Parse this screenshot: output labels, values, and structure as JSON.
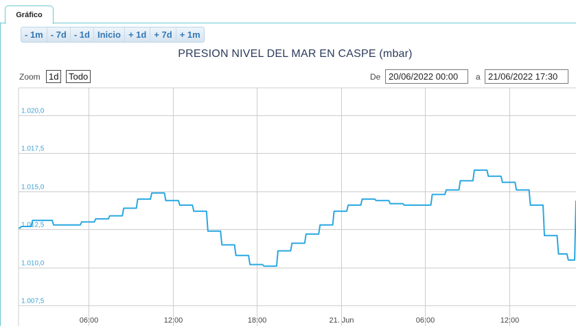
{
  "tab": {
    "label": "Gráfico"
  },
  "range_buttons": [
    "- 1m",
    "- 7d",
    "- 1d",
    "Inicio",
    "+ 1d",
    "+ 7d",
    "+ 1m"
  ],
  "zoom": {
    "label": "Zoom",
    "buttons": [
      "1d",
      "Todo"
    ]
  },
  "date_range": {
    "from_label": "De",
    "from": "20/06/2022 00:00",
    "to_label": "a",
    "to": "21/06/2022 17:30"
  },
  "colors": {
    "line": "#28a7e1",
    "grid": "#cccccc",
    "accent": "#6cc7cf"
  },
  "chart_data": {
    "type": "line",
    "title": "PRESION NIVEL DEL MAR EN CASPE (mbar)",
    "ytick_labels": [
      "1.007,5",
      "1.010,0",
      "1.012,5",
      "1.015,0",
      "1.017,5",
      "1.020,0"
    ],
    "yticks": [
      1007.5,
      1010.0,
      1012.5,
      1015.0,
      1017.5,
      1020.0
    ],
    "ylim": [
      1006.8,
      1021.8
    ],
    "xtick_labels": [
      "06:00",
      "12:00",
      "18:00",
      "21. Jun",
      "06:00",
      "12:00"
    ],
    "xticks": [
      6,
      12,
      18,
      24,
      30,
      36
    ],
    "xlim": [
      1.0,
      40.75
    ],
    "grid": true,
    "series": [
      {
        "x": [
          1.0,
          1.2,
          2.0,
          3.0,
          3.5,
          4.5,
          5.5,
          6.5,
          7.5,
          8.5,
          9.5,
          10.5,
          11.5,
          12.5,
          13.5,
          14.5,
          15.5,
          16.5,
          17.5,
          18.5,
          19.5,
          20.5,
          21.5,
          22.5,
          23.5,
          24.5,
          25.5,
          26.5,
          27.5,
          28.5,
          29.5,
          30.5,
          31.5,
          32.5,
          33.5,
          34.5,
          35.5,
          36.5,
          37.5,
          38.5,
          39.5,
          40.2,
          40.75
        ],
        "y": [
          1012.6,
          1012.7,
          1013.1,
          1013.1,
          1012.8,
          1012.8,
          1013.0,
          1013.2,
          1013.4,
          1013.9,
          1014.5,
          1014.9,
          1014.4,
          1014.1,
          1013.7,
          1012.4,
          1011.5,
          1010.8,
          1010.2,
          1010.1,
          1011.1,
          1011.6,
          1012.2,
          1012.8,
          1013.7,
          1014.1,
          1014.5,
          1014.4,
          1014.2,
          1014.1,
          1014.1,
          1014.8,
          1015.1,
          1015.7,
          1016.4,
          1016.0,
          1015.6,
          1015.1,
          1014.1,
          1012.1,
          1010.9,
          1010.5,
          1014.4
        ]
      }
    ]
  }
}
